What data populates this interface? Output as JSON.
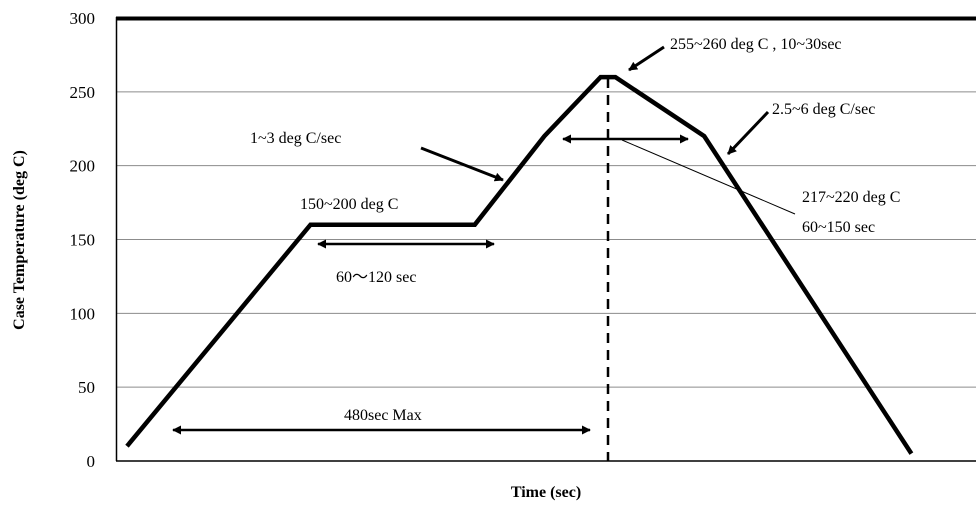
{
  "chart_data": {
    "type": "line",
    "title": "",
    "xlabel": "Time (sec)",
    "ylabel": "Case Temperature (deg C)",
    "ylim": [
      0,
      300
    ],
    "yticks": [
      "0",
      "50",
      "100",
      "150",
      "200",
      "250",
      "300"
    ],
    "grid": "horizontal",
    "legend": "none",
    "line_color": "#000000",
    "series": [
      {
        "x": [
          0,
          124,
          235,
          282,
          320,
          330,
          390,
          530
        ],
        "values": [
          10,
          160,
          160,
          220,
          260,
          260,
          220,
          5
        ]
      }
    ],
    "peak_marker_x": 330,
    "annotations": [
      {
        "key": "preheat_temp",
        "text": "150~200 deg C"
      },
      {
        "key": "preheat_time",
        "text": "60〜120 sec"
      },
      {
        "key": "ramp_up",
        "text": "1~3 deg C/sec"
      },
      {
        "key": "peak",
        "text": "255~260 deg C , 10~30sec"
      },
      {
        "key": "ramp_down",
        "text": "2.5~6 deg C/sec"
      },
      {
        "key": "liquidus_temp",
        "text": "217~220 deg C"
      },
      {
        "key": "liquidus_time",
        "text": "60~150 sec"
      },
      {
        "key": "total",
        "text": "480sec  Max"
      }
    ]
  }
}
